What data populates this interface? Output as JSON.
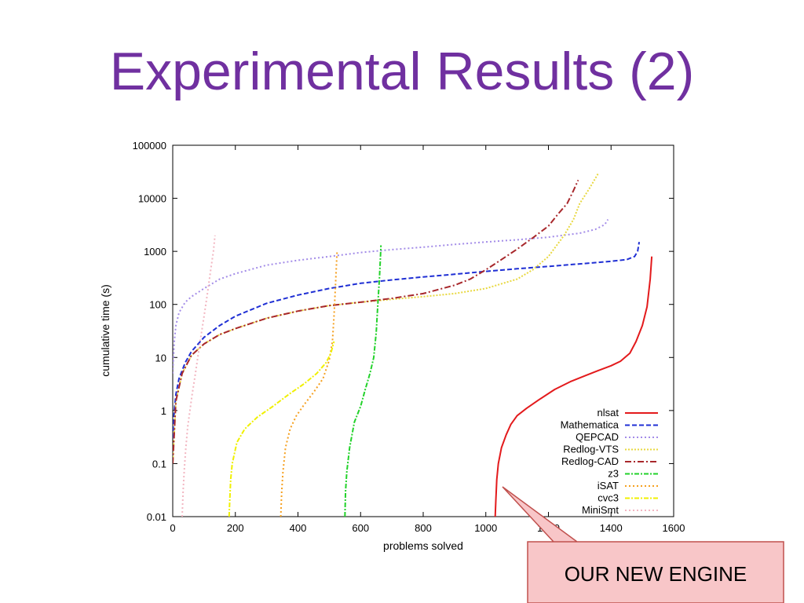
{
  "slide": {
    "title": "Experimental Results (2)"
  },
  "callout": {
    "text": "OUR NEW ENGINE",
    "fill": "#f8c6c8",
    "stroke": "#c0504d"
  },
  "chart_data": {
    "type": "line",
    "xlabel": "problems solved",
    "ylabel": "cumulative time (s)",
    "xlim": [
      0,
      1600
    ],
    "ylim": [
      0.01,
      100000
    ],
    "yscale": "log",
    "grid": false,
    "legend_position": "bottom-right",
    "x_ticks": [
      {
        "value": 0,
        "label": "0"
      },
      {
        "value": 200,
        "label": "200"
      },
      {
        "value": 400,
        "label": "400"
      },
      {
        "value": 600,
        "label": "600"
      },
      {
        "value": 800,
        "label": "800"
      },
      {
        "value": 1000,
        "label": "1000"
      },
      {
        "value": 1200,
        "label": "1200"
      },
      {
        "value": 1400,
        "label": "1400"
      },
      {
        "value": 1600,
        "label": "1600"
      }
    ],
    "y_ticks": [
      {
        "value": 0.01,
        "label": "0.01"
      },
      {
        "value": 0.1,
        "label": "0.1"
      },
      {
        "value": 1,
        "label": "1"
      },
      {
        "value": 10,
        "label": "10"
      },
      {
        "value": 100,
        "label": "100"
      },
      {
        "value": 1000,
        "label": "1000"
      },
      {
        "value": 10000,
        "label": "10000"
      },
      {
        "value": 100000,
        "label": "100000"
      }
    ],
    "series": [
      {
        "name": "nlsat",
        "color": "#e31a1c",
        "dash": "",
        "width": 2,
        "x": [
          1030,
          1032,
          1035,
          1040,
          1050,
          1065,
          1080,
          1100,
          1130,
          1170,
          1220,
          1270,
          1320,
          1360,
          1400,
          1430,
          1460,
          1480,
          1500,
          1515,
          1525,
          1530
        ],
        "y": [
          0.01,
          0.02,
          0.05,
          0.1,
          0.2,
          0.35,
          0.55,
          0.8,
          1.1,
          1.6,
          2.5,
          3.5,
          4.6,
          5.7,
          7,
          8.5,
          12,
          20,
          40,
          90,
          300,
          800
        ]
      },
      {
        "name": "Mathematica",
        "color": "#1f2fd4",
        "dash": "6,3",
        "width": 2,
        "x": [
          0,
          5,
          10,
          20,
          40,
          60,
          100,
          150,
          200,
          300,
          400,
          500,
          600,
          700,
          800,
          900,
          1000,
          1100,
          1200,
          1300,
          1400,
          1450,
          1475,
          1485,
          1490
        ],
        "y": [
          0.3,
          1,
          2,
          4,
          8,
          13,
          24,
          40,
          60,
          105,
          150,
          200,
          250,
          290,
          330,
          370,
          420,
          470,
          520,
          580,
          650,
          700,
          800,
          1000,
          1500
        ]
      },
      {
        "name": "QEPCAD",
        "color": "#a38ce8",
        "dash": "2,3",
        "width": 2,
        "x": [
          0,
          5,
          10,
          20,
          40,
          60,
          100,
          150,
          200,
          300,
          400,
          500,
          600,
          700,
          800,
          900,
          1000,
          1100,
          1200,
          1300,
          1350,
          1380,
          1390
        ],
        "y": [
          5,
          20,
          40,
          70,
          110,
          140,
          200,
          300,
          380,
          550,
          680,
          800,
          950,
          1080,
          1200,
          1350,
          1500,
          1650,
          1850,
          2200,
          2600,
          3200,
          4000
        ]
      },
      {
        "name": "Redlog-VTS",
        "color": "#e8d840",
        "dash": "2,2",
        "width": 2,
        "x": [
          0,
          10,
          30,
          60,
          100,
          150,
          200,
          300,
          400,
          500,
          600,
          700,
          800,
          900,
          1000,
          1100,
          1150,
          1200,
          1250,
          1280,
          1300,
          1330,
          1360
        ],
        "y": [
          0.1,
          1.5,
          5,
          11,
          18,
          27,
          35,
          55,
          75,
          95,
          110,
          125,
          140,
          160,
          200,
          300,
          450,
          800,
          2000,
          4000,
          8000,
          15000,
          30000
        ]
      },
      {
        "name": "Redlog-CAD",
        "color": "#a8282c",
        "dash": "8,3,2,3",
        "width": 2,
        "x": [
          0,
          10,
          30,
          60,
          100,
          150,
          200,
          300,
          400,
          500,
          600,
          700,
          800,
          900,
          950,
          1000,
          1050,
          1100,
          1150,
          1200,
          1230,
          1260,
          1280,
          1295
        ],
        "y": [
          0.1,
          1.5,
          5,
          11,
          18,
          27,
          35,
          55,
          75,
          95,
          110,
          130,
          160,
          230,
          300,
          450,
          700,
          1100,
          1800,
          3000,
          5000,
          8000,
          14000,
          22000
        ]
      },
      {
        "name": "z3",
        "color": "#22d22a",
        "dash": "6,2,2,2",
        "width": 2,
        "x": [
          550,
          552,
          556,
          565,
          580,
          600,
          615,
          630,
          642,
          650,
          655,
          660,
          663,
          665
        ],
        "y": [
          0.01,
          0.03,
          0.07,
          0.2,
          0.6,
          1.2,
          2.5,
          5,
          10,
          30,
          100,
          300,
          700,
          1300
        ]
      },
      {
        "name": "iSAT",
        "color": "#f5a020",
        "dash": "2,3",
        "width": 2,
        "x": [
          345,
          348,
          352,
          360,
          375,
          395,
          420,
          450,
          480,
          500,
          510,
          515,
          520,
          525
        ],
        "y": [
          0.01,
          0.03,
          0.07,
          0.2,
          0.45,
          0.8,
          1.3,
          2.2,
          4,
          9,
          20,
          60,
          250,
          1000
        ]
      },
      {
        "name": "cvc3",
        "color": "#f0f000",
        "dash": "6,2,2,2",
        "width": 2,
        "x": [
          180,
          182,
          185,
          190,
          205,
          230,
          270,
          320,
          370,
          420,
          460,
          490,
          505,
          515
        ],
        "y": [
          0.01,
          0.02,
          0.05,
          0.1,
          0.25,
          0.45,
          0.75,
          1.2,
          2,
          3.2,
          5,
          8,
          12,
          20
        ]
      },
      {
        "name": "MiniSmt",
        "color": "#f2b6c1",
        "dash": "2,3",
        "width": 2,
        "x": [
          30,
          33,
          37,
          42,
          48,
          55,
          62,
          70,
          80,
          90,
          100,
          110,
          120,
          130,
          135
        ],
        "y": [
          0.01,
          0.03,
          0.08,
          0.2,
          0.5,
          1,
          2,
          4,
          10,
          25,
          60,
          150,
          400,
          1000,
          2000
        ]
      }
    ]
  }
}
